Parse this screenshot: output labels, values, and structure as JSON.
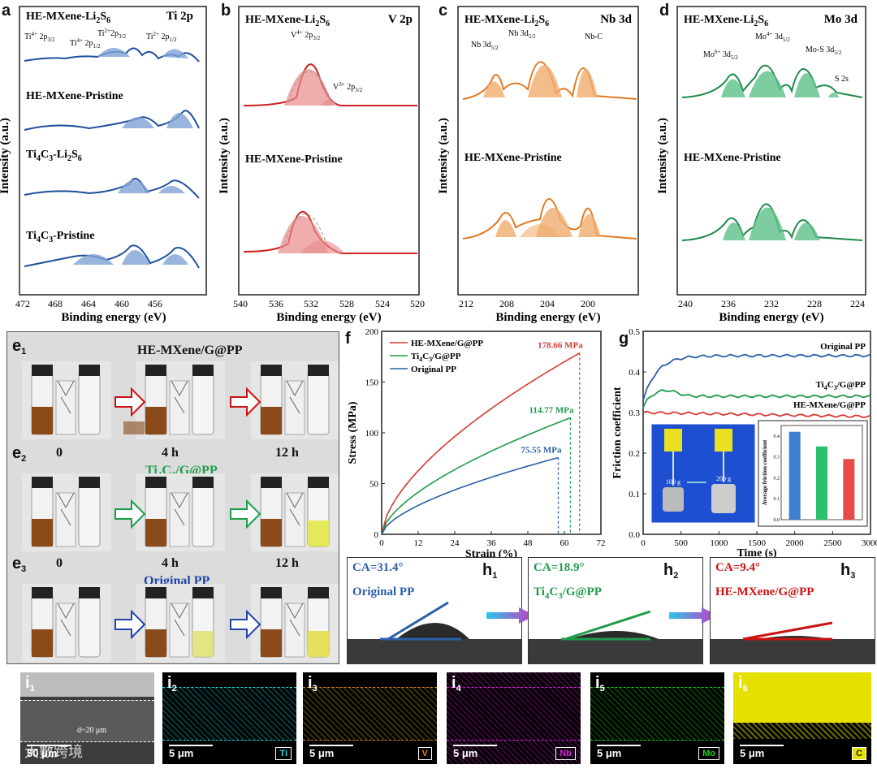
{
  "panel_letters": {
    "a": "a",
    "b": "b",
    "c": "c",
    "d": "d",
    "f": "f",
    "g": "g"
  },
  "xps": {
    "ylabel": "Intensity (a.u.)",
    "xlabel": "Binding energy (eV)",
    "a": {
      "corner": "Ti 2p",
      "traces": [
        "HE-MXene-Li",
        "HE-MXene-Pristine",
        "Ti",
        "Ti"
      ],
      "ticks": [
        "472",
        "468",
        "464",
        "460",
        "456"
      ],
      "peaks": [
        "Ti",
        "Ti",
        "Ti",
        "Ti"
      ]
    },
    "b": {
      "corner": "V 2p",
      "traces": [
        "HE-MXene-Li",
        "HE-MXene-Pristine"
      ],
      "ticks": [
        "540",
        "536",
        "532",
        "528",
        "524",
        "520"
      ],
      "peaks": [
        "V",
        "V"
      ]
    },
    "c": {
      "corner": "Nb 3d",
      "traces": [
        "HE-MXene-Li",
        "HE-MXene-Pristine"
      ],
      "ticks": [
        "212",
        "208",
        "204",
        "200"
      ],
      "peaks": [
        "Nb 3d",
        "Nb 3d",
        "Nb-C"
      ]
    },
    "d": {
      "corner": "Mo 3d",
      "traces": [
        "HE-MXene-Li",
        "HE-MXene-Pristine"
      ],
      "ticks": [
        "240",
        "236",
        "232",
        "228",
        "224"
      ],
      "peaks": [
        "Mo",
        "Mo",
        "Mo-S 3d",
        "S 2s"
      ]
    }
  },
  "e": {
    "rows": [
      {
        "id": "e",
        "sub": "1",
        "title": "HE-MXene/G@PP",
        "title_color": "#cc1111",
        "arrow_color": "#cc1111",
        "t0": "",
        "t1": "",
        "t2": ""
      },
      {
        "id": "e",
        "sub": "2",
        "title": "Ti",
        "title_color": "#1a9e4a",
        "arrow_color": "#1a9e4a",
        "t0": "0",
        "t1": "4 h",
        "t2": "12 h"
      },
      {
        "id": "e",
        "sub": "3",
        "title": "Original PP",
        "title_color": "#2244aa",
        "arrow_color": "#2244aa",
        "t0": "0",
        "t1": "4 h",
        "t2": "12 h"
      }
    ],
    "ti_suffix": "C",
    "ti_tail": "/G@PP",
    "ti_sub3": "3",
    "ti_sub4": "4"
  },
  "chart_data": [
    {
      "type": "line",
      "panel": "f",
      "title": "",
      "xlabel": "Strain (%)",
      "ylabel": "Stress (MPa)",
      "xlim": [
        0,
        72
      ],
      "ylim": [
        0,
        200
      ],
      "xticks": [
        "0",
        "12",
        "24",
        "36",
        "48",
        "60",
        "72"
      ],
      "yticks": [
        "0",
        "50",
        "100",
        "150",
        "200"
      ],
      "series": [
        {
          "name": "HE-MXene/G@PP",
          "color": "#d43a33",
          "end_x": 65,
          "end_y": 178.66,
          "label": "178.66 MPa"
        },
        {
          "name": "Ti4C3/G@PP",
          "color": "#1f9a4a",
          "end_x": 62,
          "end_y": 114.77,
          "label": "114.77 MPa"
        },
        {
          "name": "Original PP",
          "color": "#2b5ea8",
          "end_x": 58,
          "end_y": 75.55,
          "label": "75.55 MPa"
        }
      ],
      "legend": [
        "HE-MXene/G@PP",
        "Ti",
        "Original PP"
      ]
    },
    {
      "type": "line",
      "panel": "g",
      "title": "",
      "xlabel": "Time (s)",
      "ylabel": "Friction coefficient",
      "xlim": [
        0,
        3000
      ],
      "ylim": [
        0,
        0.5
      ],
      "xticks": [
        "0",
        "500",
        "1000",
        "1500",
        "2000",
        "2500",
        "3000"
      ],
      "yticks": [
        "0.0",
        "0.1",
        "0.2",
        "0.3",
        "0.4",
        "0.5"
      ],
      "series": [
        {
          "name": "Original PP",
          "color": "#2b5ea8",
          "start": 0.33,
          "plateau": 0.44
        },
        {
          "name": "Ti4C3/G@PP",
          "color": "#1f9a4a",
          "start": 0.31,
          "plateau": 0.34
        },
        {
          "name": "HE-MXene/G@PP",
          "color": "#d43a33",
          "start": 0.3,
          "plateau": 0.29
        }
      ],
      "labels": {
        "original": "Original PP",
        "ti": "Ti",
        "he": "HE-MXene/G@PP"
      },
      "inset": {
        "type": "bar",
        "ylabel": "Average friction coefficient",
        "yticks": [
          "0.0",
          "0.1",
          "0.2",
          "0.3",
          "0.4"
        ],
        "values": [
          0.42,
          0.35,
          0.29
        ],
        "colors": [
          "#3d7fd1",
          "#2bc06a",
          "#e84a4a"
        ]
      },
      "inset_photo": {
        "w1": "100 g",
        "w2": "200 g"
      }
    }
  ],
  "h": [
    {
      "id": "h",
      "sub": "1",
      "ca": "CA=31.4°",
      "name": "Original PP",
      "color": "#2b5ea8",
      "angle": 31.4
    },
    {
      "id": "h",
      "sub": "2",
      "ca": "CA=18.9°",
      "name": "Ti",
      "name_tail": "/G@PP",
      "color": "#1f9a4a",
      "angle": 18.9
    },
    {
      "id": "h",
      "sub": "3",
      "ca": "CA=9.4°",
      "name": "HE-MXene/G@PP",
      "color": "#cc1111",
      "angle": 9.4
    }
  ],
  "i": [
    {
      "id": "i",
      "sub": "1",
      "scale": "50 μm",
      "elem": "",
      "thick": "d~20 μm",
      "color": "#888"
    },
    {
      "id": "i",
      "sub": "2",
      "scale": "5 μm",
      "elem": "Ti",
      "color": "#22d8dc"
    },
    {
      "id": "i",
      "sub": "3",
      "scale": "5 μm",
      "elem": "V",
      "color": "#e0802a"
    },
    {
      "id": "i",
      "sub": "4",
      "scale": "5 μm",
      "elem": "Nb",
      "color": "#e020e0"
    },
    {
      "id": "i",
      "sub": "5",
      "scale": "5 μm",
      "elem": "Mo",
      "color": "#20d020"
    },
    {
      "id": "i",
      "sub": "6",
      "scale": "5 μm",
      "elem": "C",
      "color": "#e6e000"
    }
  ],
  "watermark": "大數跨境"
}
